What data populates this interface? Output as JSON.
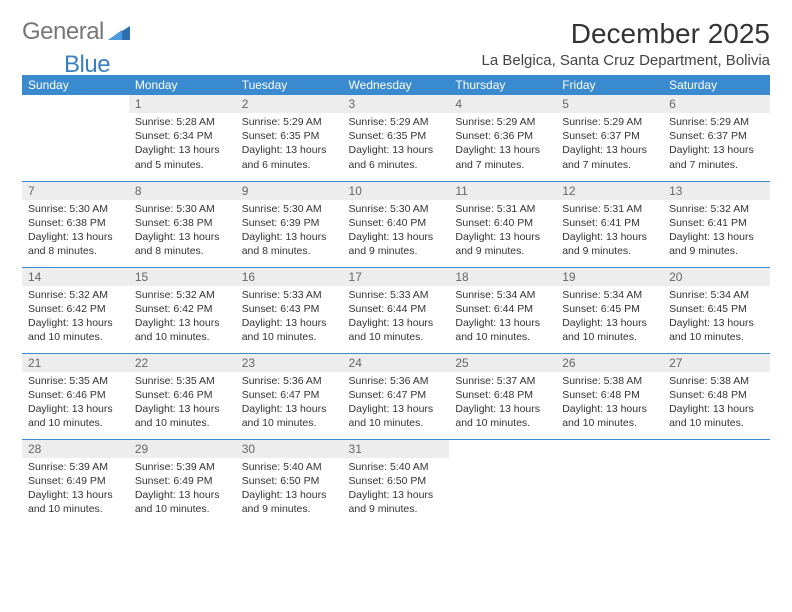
{
  "brand": {
    "part1": "General",
    "part2": "Blue"
  },
  "title": "December 2025",
  "location": "La Belgica, Santa Cruz Department, Bolivia",
  "colors": {
    "header_bg": "#3a8ad0",
    "header_text": "#ffffff",
    "daynum_bg": "#ededed",
    "daynum_text": "#666666",
    "border": "#3a8ad0",
    "logo_gray": "#777777",
    "logo_blue": "#3a7fc4"
  },
  "day_headers": [
    "Sunday",
    "Monday",
    "Tuesday",
    "Wednesday",
    "Thursday",
    "Friday",
    "Saturday"
  ],
  "weeks": [
    [
      {
        "day": "",
        "sunrise": "",
        "sunset": "",
        "daylight": ""
      },
      {
        "day": "1",
        "sunrise": "Sunrise: 5:28 AM",
        "sunset": "Sunset: 6:34 PM",
        "daylight": "Daylight: 13 hours and 5 minutes."
      },
      {
        "day": "2",
        "sunrise": "Sunrise: 5:29 AM",
        "sunset": "Sunset: 6:35 PM",
        "daylight": "Daylight: 13 hours and 6 minutes."
      },
      {
        "day": "3",
        "sunrise": "Sunrise: 5:29 AM",
        "sunset": "Sunset: 6:35 PM",
        "daylight": "Daylight: 13 hours and 6 minutes."
      },
      {
        "day": "4",
        "sunrise": "Sunrise: 5:29 AM",
        "sunset": "Sunset: 6:36 PM",
        "daylight": "Daylight: 13 hours and 7 minutes."
      },
      {
        "day": "5",
        "sunrise": "Sunrise: 5:29 AM",
        "sunset": "Sunset: 6:37 PM",
        "daylight": "Daylight: 13 hours and 7 minutes."
      },
      {
        "day": "6",
        "sunrise": "Sunrise: 5:29 AM",
        "sunset": "Sunset: 6:37 PM",
        "daylight": "Daylight: 13 hours and 7 minutes."
      }
    ],
    [
      {
        "day": "7",
        "sunrise": "Sunrise: 5:30 AM",
        "sunset": "Sunset: 6:38 PM",
        "daylight": "Daylight: 13 hours and 8 minutes."
      },
      {
        "day": "8",
        "sunrise": "Sunrise: 5:30 AM",
        "sunset": "Sunset: 6:38 PM",
        "daylight": "Daylight: 13 hours and 8 minutes."
      },
      {
        "day": "9",
        "sunrise": "Sunrise: 5:30 AM",
        "sunset": "Sunset: 6:39 PM",
        "daylight": "Daylight: 13 hours and 8 minutes."
      },
      {
        "day": "10",
        "sunrise": "Sunrise: 5:30 AM",
        "sunset": "Sunset: 6:40 PM",
        "daylight": "Daylight: 13 hours and 9 minutes."
      },
      {
        "day": "11",
        "sunrise": "Sunrise: 5:31 AM",
        "sunset": "Sunset: 6:40 PM",
        "daylight": "Daylight: 13 hours and 9 minutes."
      },
      {
        "day": "12",
        "sunrise": "Sunrise: 5:31 AM",
        "sunset": "Sunset: 6:41 PM",
        "daylight": "Daylight: 13 hours and 9 minutes."
      },
      {
        "day": "13",
        "sunrise": "Sunrise: 5:32 AM",
        "sunset": "Sunset: 6:41 PM",
        "daylight": "Daylight: 13 hours and 9 minutes."
      }
    ],
    [
      {
        "day": "14",
        "sunrise": "Sunrise: 5:32 AM",
        "sunset": "Sunset: 6:42 PM",
        "daylight": "Daylight: 13 hours and 10 minutes."
      },
      {
        "day": "15",
        "sunrise": "Sunrise: 5:32 AM",
        "sunset": "Sunset: 6:42 PM",
        "daylight": "Daylight: 13 hours and 10 minutes."
      },
      {
        "day": "16",
        "sunrise": "Sunrise: 5:33 AM",
        "sunset": "Sunset: 6:43 PM",
        "daylight": "Daylight: 13 hours and 10 minutes."
      },
      {
        "day": "17",
        "sunrise": "Sunrise: 5:33 AM",
        "sunset": "Sunset: 6:44 PM",
        "daylight": "Daylight: 13 hours and 10 minutes."
      },
      {
        "day": "18",
        "sunrise": "Sunrise: 5:34 AM",
        "sunset": "Sunset: 6:44 PM",
        "daylight": "Daylight: 13 hours and 10 minutes."
      },
      {
        "day": "19",
        "sunrise": "Sunrise: 5:34 AM",
        "sunset": "Sunset: 6:45 PM",
        "daylight": "Daylight: 13 hours and 10 minutes."
      },
      {
        "day": "20",
        "sunrise": "Sunrise: 5:34 AM",
        "sunset": "Sunset: 6:45 PM",
        "daylight": "Daylight: 13 hours and 10 minutes."
      }
    ],
    [
      {
        "day": "21",
        "sunrise": "Sunrise: 5:35 AM",
        "sunset": "Sunset: 6:46 PM",
        "daylight": "Daylight: 13 hours and 10 minutes."
      },
      {
        "day": "22",
        "sunrise": "Sunrise: 5:35 AM",
        "sunset": "Sunset: 6:46 PM",
        "daylight": "Daylight: 13 hours and 10 minutes."
      },
      {
        "day": "23",
        "sunrise": "Sunrise: 5:36 AM",
        "sunset": "Sunset: 6:47 PM",
        "daylight": "Daylight: 13 hours and 10 minutes."
      },
      {
        "day": "24",
        "sunrise": "Sunrise: 5:36 AM",
        "sunset": "Sunset: 6:47 PM",
        "daylight": "Daylight: 13 hours and 10 minutes."
      },
      {
        "day": "25",
        "sunrise": "Sunrise: 5:37 AM",
        "sunset": "Sunset: 6:48 PM",
        "daylight": "Daylight: 13 hours and 10 minutes."
      },
      {
        "day": "26",
        "sunrise": "Sunrise: 5:38 AM",
        "sunset": "Sunset: 6:48 PM",
        "daylight": "Daylight: 13 hours and 10 minutes."
      },
      {
        "day": "27",
        "sunrise": "Sunrise: 5:38 AM",
        "sunset": "Sunset: 6:48 PM",
        "daylight": "Daylight: 13 hours and 10 minutes."
      }
    ],
    [
      {
        "day": "28",
        "sunrise": "Sunrise: 5:39 AM",
        "sunset": "Sunset: 6:49 PM",
        "daylight": "Daylight: 13 hours and 10 minutes."
      },
      {
        "day": "29",
        "sunrise": "Sunrise: 5:39 AM",
        "sunset": "Sunset: 6:49 PM",
        "daylight": "Daylight: 13 hours and 10 minutes."
      },
      {
        "day": "30",
        "sunrise": "Sunrise: 5:40 AM",
        "sunset": "Sunset: 6:50 PM",
        "daylight": "Daylight: 13 hours and 9 minutes."
      },
      {
        "day": "31",
        "sunrise": "Sunrise: 5:40 AM",
        "sunset": "Sunset: 6:50 PM",
        "daylight": "Daylight: 13 hours and 9 minutes."
      },
      {
        "day": "",
        "sunrise": "",
        "sunset": "",
        "daylight": ""
      },
      {
        "day": "",
        "sunrise": "",
        "sunset": "",
        "daylight": ""
      },
      {
        "day": "",
        "sunrise": "",
        "sunset": "",
        "daylight": ""
      }
    ]
  ]
}
